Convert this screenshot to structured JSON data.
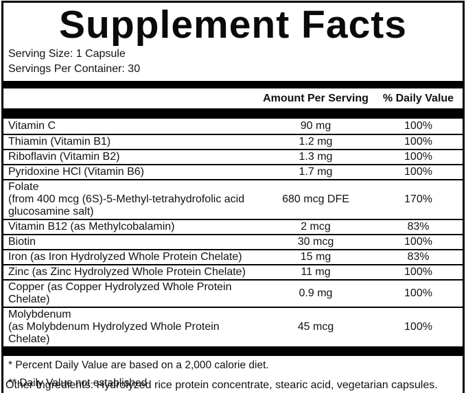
{
  "title": "Supplement Facts",
  "serving": {
    "size": "Serving Size: 1 Capsule",
    "per_container": "Servings Per Container: 30"
  },
  "table": {
    "headers": {
      "amount": "Amount Per Serving",
      "daily_value": "% Daily Value"
    },
    "rows": [
      {
        "name_lines": [
          "Vitamin C"
        ],
        "amount": "90 mg",
        "dv": "100%"
      },
      {
        "name_lines": [
          "Thiamin (Vitamin B1)"
        ],
        "amount": "1.2 mg",
        "dv": "100%"
      },
      {
        "name_lines": [
          "Riboflavin (Vitamin B2)"
        ],
        "amount": "1.3 mg",
        "dv": "100%"
      },
      {
        "name_lines": [
          "Pyridoxine HCl (Vitamin B6)"
        ],
        "amount": "1.7 mg",
        "dv": "100%"
      },
      {
        "name_lines": [
          "Folate",
          "(from 400 mcg (6S)-5-Methyl-tetrahydrofolic acid",
          "glucosamine salt)"
        ],
        "amount": "680 mcg DFE",
        "dv": "170%"
      },
      {
        "name_lines": [
          "Vitamin B12 (as Methylcobalamin)"
        ],
        "amount": "2 mcg",
        "dv": "83%"
      },
      {
        "name_lines": [
          "Biotin"
        ],
        "amount": "30 mcg",
        "dv": "100%"
      },
      {
        "name_lines": [
          "Iron (as Iron Hydrolyzed Whole Protein Chelate)"
        ],
        "amount": "15 mg",
        "dv": "83%"
      },
      {
        "name_lines": [
          "Zinc (as Zinc Hydrolyzed Whole Protein Chelate)"
        ],
        "amount": "11 mg",
        "dv": "100%"
      },
      {
        "name_lines": [
          "Copper (as Copper Hydrolyzed Whole Protein Chelate)"
        ],
        "amount": "0.9 mg",
        "dv": "100%"
      },
      {
        "name_lines": [
          "Molybdenum",
          "(as Molybdenum Hydrolyzed Whole Protein Chelate)"
        ],
        "amount": "45 mcg",
        "dv": "100%"
      }
    ]
  },
  "footnotes": [
    "* Percent Daily Value are based on a 2,000 calorie diet.",
    "** Daily Value not established"
  ],
  "other_ingredients": "Other Ingredients: Hydrolyzed rice protein concentrate, stearic acid, vegetarian capsules.",
  "colors": {
    "border": "#000000",
    "text": "#111111",
    "background": "#ffffff"
  }
}
